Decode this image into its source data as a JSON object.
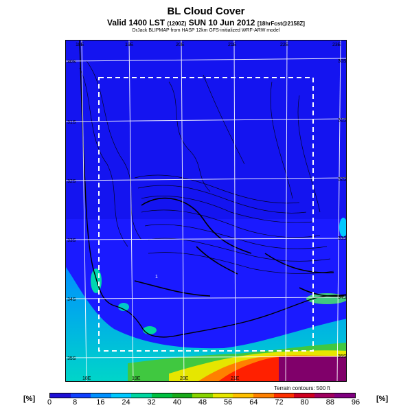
{
  "header": {
    "title": "BL Cloud Cover",
    "subtitle_main": "Valid 1400 LST",
    "subtitle_time_code": "(1200Z)",
    "subtitle_date": "SUN 10 Jun 2012",
    "subtitle_forecast": "[18hrFcst@2158Z]",
    "credit": "DrJack BLIPMAP from HASP 12km GFS-initialized WRF-ARW model"
  },
  "map": {
    "lon_labels_top": [
      "18E",
      "19E",
      "20E",
      "21E",
      "22E",
      "23E"
    ],
    "lon_labels_bottom": [
      "18E",
      "19E",
      "20E",
      "21E"
    ],
    "lat_labels_left": [
      "30S",
      "31S",
      "32S",
      "33S",
      "34S",
      "35S"
    ],
    "lat_labels_right": [
      "30S",
      "31S",
      "32S",
      "33S",
      "34S",
      "35S"
    ],
    "point_label": "1",
    "terrain_note": "Terrain contours: 500 ft",
    "colors": {
      "background_fill": "#1a1aff",
      "grid": "#ffffff",
      "domain_box": "#ffffff",
      "coastline": "#000000"
    }
  },
  "colorbar": {
    "unit_left": "[%]",
    "unit_right": "[%]",
    "ticks": [
      "0",
      "8",
      "16",
      "24",
      "32",
      "40",
      "48",
      "56",
      "64",
      "72",
      "80",
      "88",
      "96"
    ],
    "colors": [
      "#1e0fd6",
      "#1040ff",
      "#0090ff",
      "#00c8ff",
      "#00d6a0",
      "#00c040",
      "#1aaa1a",
      "#88d400",
      "#e6e600",
      "#ffc000",
      "#ff8000",
      "#ff3000",
      "#d00020",
      "#a00060",
      "#800080"
    ]
  }
}
